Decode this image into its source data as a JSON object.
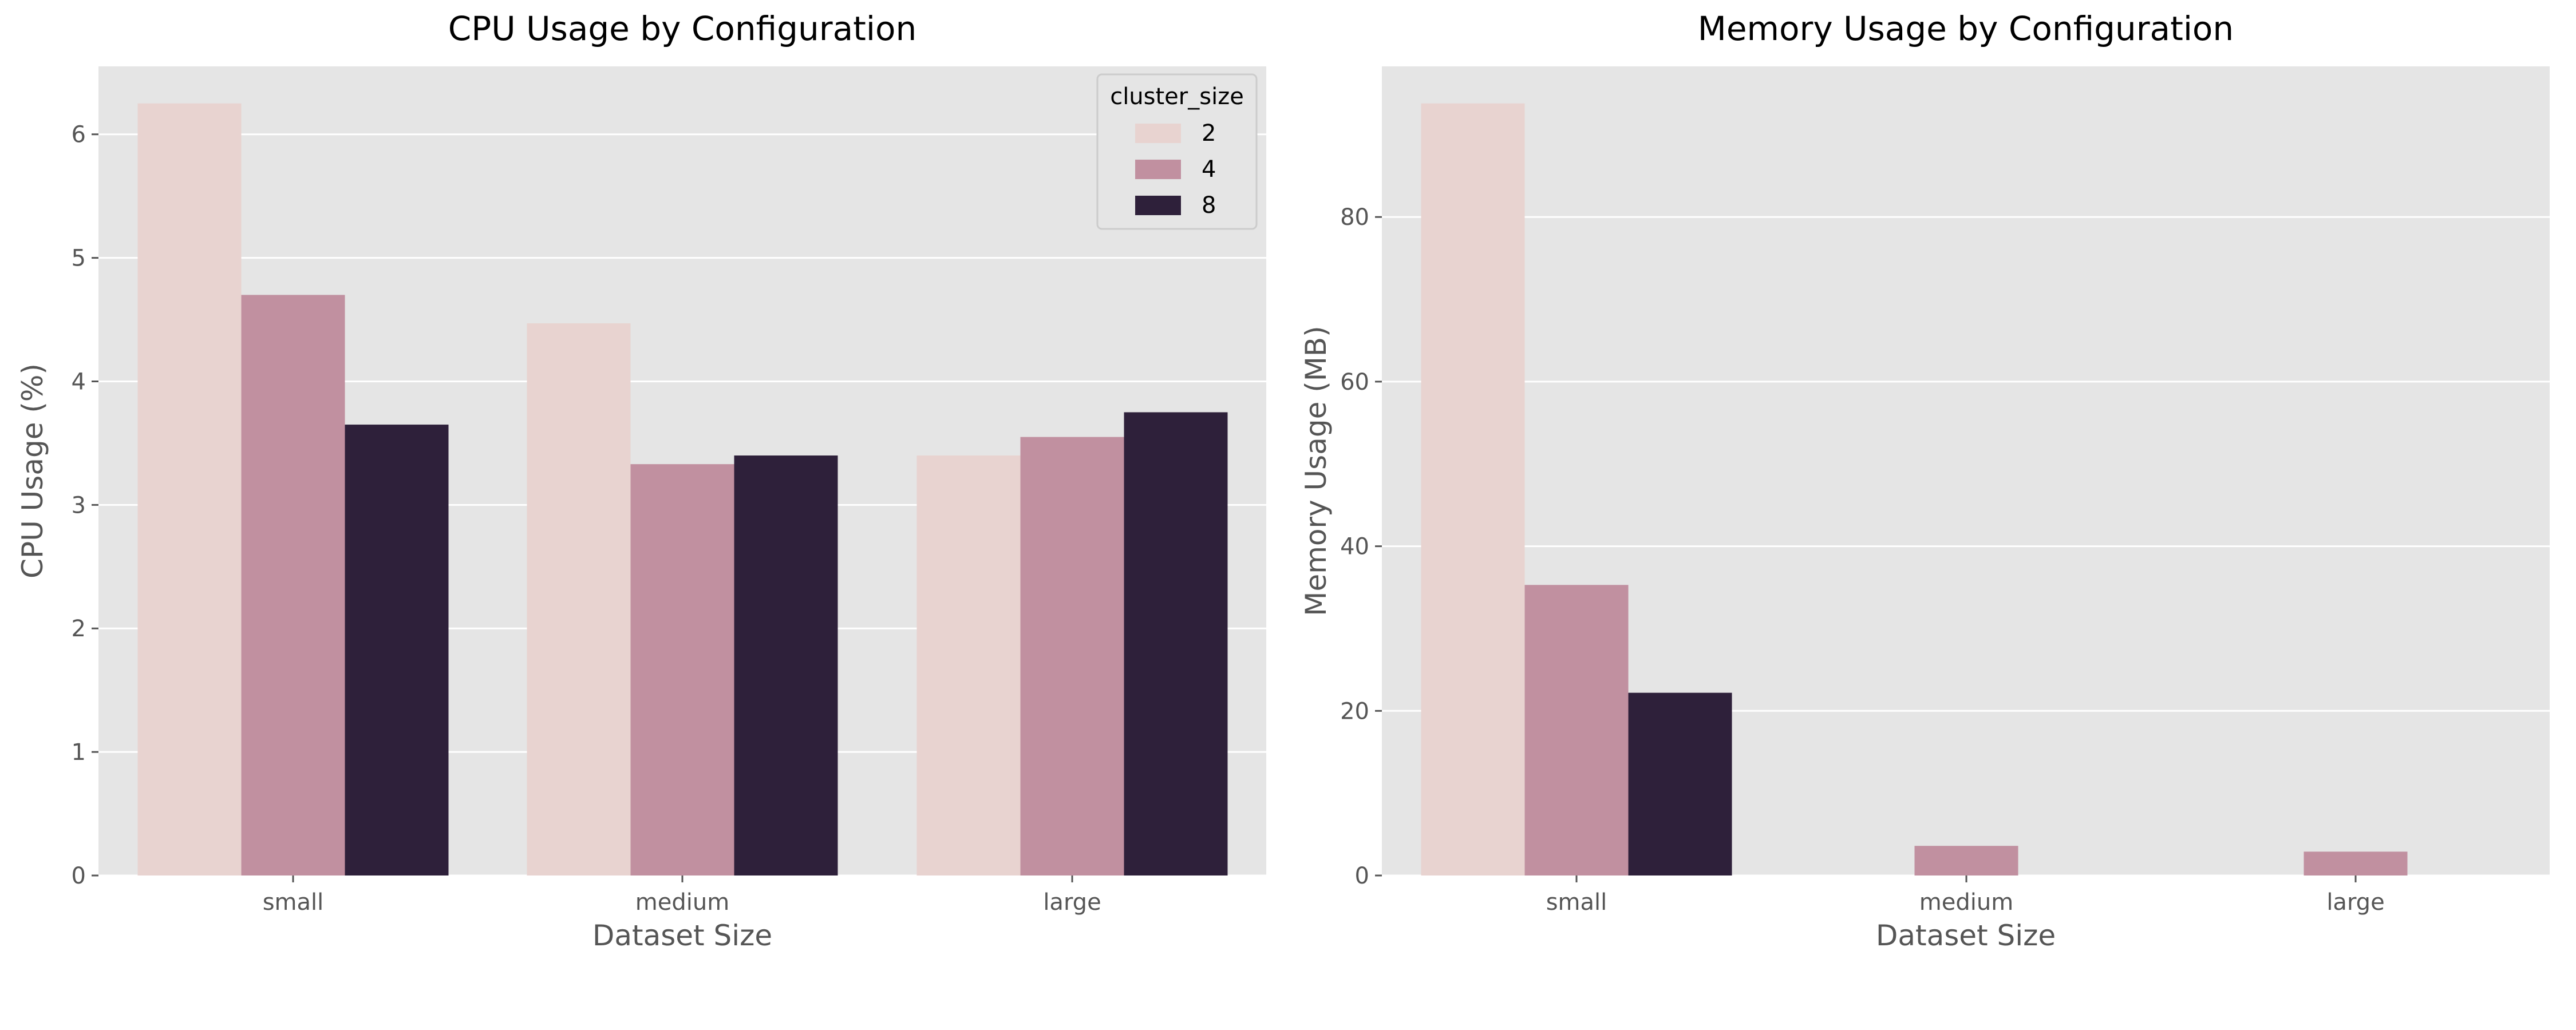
{
  "chart_data": [
    {
      "type": "bar",
      "title": "CPU Usage by Configuration",
      "xlabel": "Dataset Size",
      "ylabel": "CPU Usage (%)",
      "categories": [
        "small",
        "medium",
        "large"
      ],
      "ylim": [
        0,
        6.55
      ],
      "yticks": [
        0,
        1,
        2,
        3,
        4,
        5,
        6
      ],
      "grid": true,
      "legend": {
        "title": "cluster_size",
        "placement": "top-right"
      },
      "series": [
        {
          "name": "2",
          "color": "#e8d3d0",
          "values": [
            6.25,
            4.47,
            3.4
          ]
        },
        {
          "name": "4",
          "color": "#c190a0",
          "values": [
            4.7,
            3.33,
            3.55
          ]
        },
        {
          "name": "8",
          "color": "#2e203a",
          "values": [
            3.65,
            3.4,
            3.75
          ]
        }
      ]
    },
    {
      "type": "bar",
      "title": "Memory Usage by Configuration",
      "xlabel": "Dataset Size",
      "ylabel": "Memory Usage (MB)",
      "categories": [
        "small",
        "medium",
        "large"
      ],
      "ylim": [
        0,
        98.3
      ],
      "yticks": [
        0,
        20,
        40,
        60,
        80
      ],
      "grid": true,
      "series": [
        {
          "name": "2",
          "color": "#e8d3d0",
          "values": [
            93.8,
            0,
            0
          ]
        },
        {
          "name": "4",
          "color": "#c190a0",
          "values": [
            35.3,
            3.6,
            2.9
          ]
        },
        {
          "name": "8",
          "color": "#2e203a",
          "values": [
            22.2,
            0,
            0
          ]
        }
      ]
    }
  ]
}
